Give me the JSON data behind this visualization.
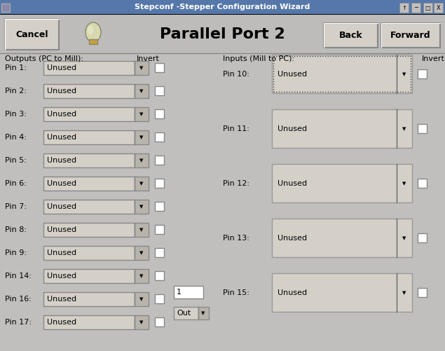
{
  "title_bar": "Stepconf -Stepper Configuration Wizard",
  "main_title": "Parallel Port 2",
  "bg_color": "#c0bfbe",
  "title_bar_color": "#5577aa",
  "cancel_text": "Cancel",
  "back_text": "Back",
  "forward_text": "Forward",
  "outputs_label": "Outputs (PC to Mill):",
  "inputs_label": "Inputs (Mill to PC):",
  "invert_label": "Invert",
  "left_pin_labels": [
    "Pin 1:",
    "Pin 2:",
    "Pin 3:",
    "Pin 4:",
    "Pin 5:",
    "Pin 6:",
    "Pin 7:",
    "Pin 8:",
    "Pin 9:",
    "Pin 14:",
    "Pin 16:",
    "Pin 17:"
  ],
  "right_pin_labels": [
    "Pin 10:",
    "Pin 11:",
    "Pin 12:",
    "Pin 13:",
    "Pin 15:"
  ],
  "dropdown_text": "Unused",
  "pin16_extra_text": "1",
  "pin16_extra_btn": "Out",
  "button_color": "#d4d0c8",
  "dd_color": "#d4d0c8",
  "dd_arrow_color": "#b8b4ac",
  "checkbox_color": "#ffffff",
  "win_ctrl_color": "#b0b0b0"
}
